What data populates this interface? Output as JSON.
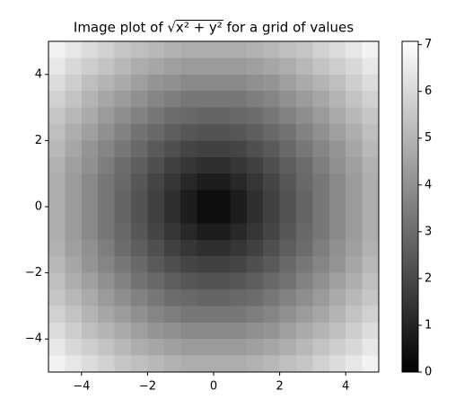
{
  "chart_data": {
    "type": "heatmap",
    "title": "Image plot of √x² + y² for a grid of values",
    "colormap": "gray",
    "xlim": [
      -5,
      5
    ],
    "ylim": [
      -5,
      5
    ],
    "xticks": [
      {
        "value": -4,
        "label": "−4"
      },
      {
        "value": -2,
        "label": "−2"
      },
      0,
      2,
      4
    ],
    "yticks": [
      {
        "value": -4,
        "label": "−4"
      },
      {
        "value": -2,
        "label": "−2"
      },
      0,
      2,
      4
    ],
    "clim": [
      0,
      7.07
    ],
    "cticks": [
      0,
      1,
      2,
      3,
      4,
      5,
      6,
      7
    ],
    "values": [
      [
        6.7,
        6.4,
        6.1,
        5.8,
        5.5,
        5.3,
        5.1,
        4.9,
        4.8,
        4.8,
        4.8,
        4.8,
        4.9,
        5.1,
        5.3,
        5.5,
        5.8,
        6.1,
        6.4,
        6.7
      ],
      [
        6.4,
        6.0,
        5.7,
        5.4,
        5.1,
        4.8,
        4.6,
        4.4,
        4.3,
        4.3,
        4.3,
        4.3,
        4.4,
        4.6,
        4.8,
        5.1,
        5.4,
        5.7,
        6.0,
        6.4
      ],
      [
        6.1,
        5.7,
        5.3,
        5.0,
        4.7,
        4.4,
        4.1,
        4.0,
        3.8,
        3.8,
        3.8,
        3.8,
        4.0,
        4.1,
        4.4,
        4.7,
        5.0,
        5.3,
        5.7,
        6.1
      ],
      [
        5.8,
        5.4,
        5.0,
        4.6,
        4.3,
        4.0,
        3.7,
        3.5,
        3.3,
        3.3,
        3.3,
        3.3,
        3.5,
        3.7,
        4.0,
        4.3,
        4.6,
        5.0,
        5.4,
        5.8
      ],
      [
        5.5,
        5.1,
        4.7,
        4.3,
        3.9,
        3.6,
        3.3,
        3.0,
        2.9,
        2.8,
        2.8,
        2.9,
        3.0,
        3.3,
        3.6,
        3.9,
        4.3,
        4.7,
        5.1,
        5.5
      ],
      [
        5.3,
        4.8,
        4.4,
        4.0,
        3.6,
        3.2,
        2.9,
        2.6,
        2.4,
        2.3,
        2.3,
        2.4,
        2.6,
        2.9,
        3.2,
        3.6,
        4.0,
        4.4,
        4.8,
        5.3
      ],
      [
        5.1,
        4.6,
        4.1,
        3.7,
        3.3,
        2.9,
        2.5,
        2.2,
        1.9,
        1.8,
        1.8,
        1.9,
        2.2,
        2.5,
        2.9,
        3.3,
        3.7,
        4.1,
        4.6,
        5.1
      ],
      [
        4.9,
        4.4,
        4.0,
        3.5,
        3.0,
        2.6,
        2.2,
        1.8,
        1.5,
        1.3,
        1.3,
        1.5,
        1.8,
        2.2,
        2.6,
        3.0,
        3.5,
        4.0,
        4.4,
        4.9
      ],
      [
        4.8,
        4.3,
        3.8,
        3.3,
        2.9,
        2.4,
        1.9,
        1.5,
        1.1,
        0.8,
        0.8,
        1.1,
        1.5,
        1.9,
        2.4,
        2.9,
        3.3,
        3.8,
        4.3,
        4.8
      ],
      [
        4.8,
        4.3,
        3.8,
        3.3,
        2.8,
        2.3,
        1.8,
        1.3,
        0.8,
        0.4,
        0.4,
        0.8,
        1.3,
        1.8,
        2.3,
        2.8,
        3.3,
        3.8,
        4.3,
        4.8
      ],
      [
        4.8,
        4.3,
        3.8,
        3.3,
        2.8,
        2.3,
        1.8,
        1.3,
        0.8,
        0.4,
        0.4,
        0.8,
        1.3,
        1.8,
        2.3,
        2.8,
        3.3,
        3.8,
        4.3,
        4.8
      ],
      [
        4.8,
        4.3,
        3.8,
        3.3,
        2.9,
        2.4,
        1.9,
        1.5,
        1.1,
        0.8,
        0.8,
        1.1,
        1.5,
        1.9,
        2.4,
        2.9,
        3.3,
        3.8,
        4.3,
        4.8
      ],
      [
        4.9,
        4.4,
        4.0,
        3.5,
        3.0,
        2.6,
        2.2,
        1.8,
        1.5,
        1.3,
        1.3,
        1.5,
        1.8,
        2.2,
        2.6,
        3.0,
        3.5,
        4.0,
        4.4,
        4.9
      ],
      [
        5.1,
        4.6,
        4.1,
        3.7,
        3.3,
        2.9,
        2.5,
        2.2,
        1.9,
        1.8,
        1.8,
        1.9,
        2.2,
        2.5,
        2.9,
        3.3,
        3.7,
        4.1,
        4.6,
        5.1
      ],
      [
        5.3,
        4.8,
        4.4,
        4.0,
        3.6,
        3.2,
        2.9,
        2.6,
        2.4,
        2.3,
        2.3,
        2.4,
        2.6,
        2.9,
        3.2,
        3.6,
        4.0,
        4.4,
        4.8,
        5.3
      ],
      [
        5.5,
        5.1,
        4.7,
        4.3,
        3.9,
        3.6,
        3.3,
        3.0,
        2.9,
        2.8,
        2.8,
        2.9,
        3.0,
        3.3,
        3.6,
        3.9,
        4.3,
        4.7,
        5.1,
        5.5
      ],
      [
        5.8,
        5.4,
        5.0,
        4.6,
        4.3,
        4.0,
        3.7,
        3.5,
        3.3,
        3.3,
        3.3,
        3.3,
        3.5,
        3.7,
        4.0,
        4.3,
        4.6,
        5.0,
        5.4,
        5.8
      ],
      [
        6.1,
        5.7,
        5.3,
        5.0,
        4.7,
        4.4,
        4.1,
        4.0,
        3.8,
        3.8,
        3.8,
        3.8,
        4.0,
        4.1,
        4.4,
        4.7,
        5.0,
        5.3,
        5.7,
        6.1
      ],
      [
        6.4,
        6.0,
        5.7,
        5.4,
        5.1,
        4.8,
        4.6,
        4.4,
        4.3,
        4.3,
        4.3,
        4.3,
        4.4,
        4.6,
        4.8,
        5.1,
        5.4,
        5.7,
        6.0,
        6.4
      ],
      [
        6.7,
        6.4,
        6.1,
        5.8,
        5.5,
        5.3,
        5.1,
        4.9,
        4.8,
        4.8,
        4.8,
        4.8,
        4.9,
        5.1,
        5.3,
        5.5,
        5.8,
        6.1,
        6.4,
        6.7
      ]
    ]
  }
}
